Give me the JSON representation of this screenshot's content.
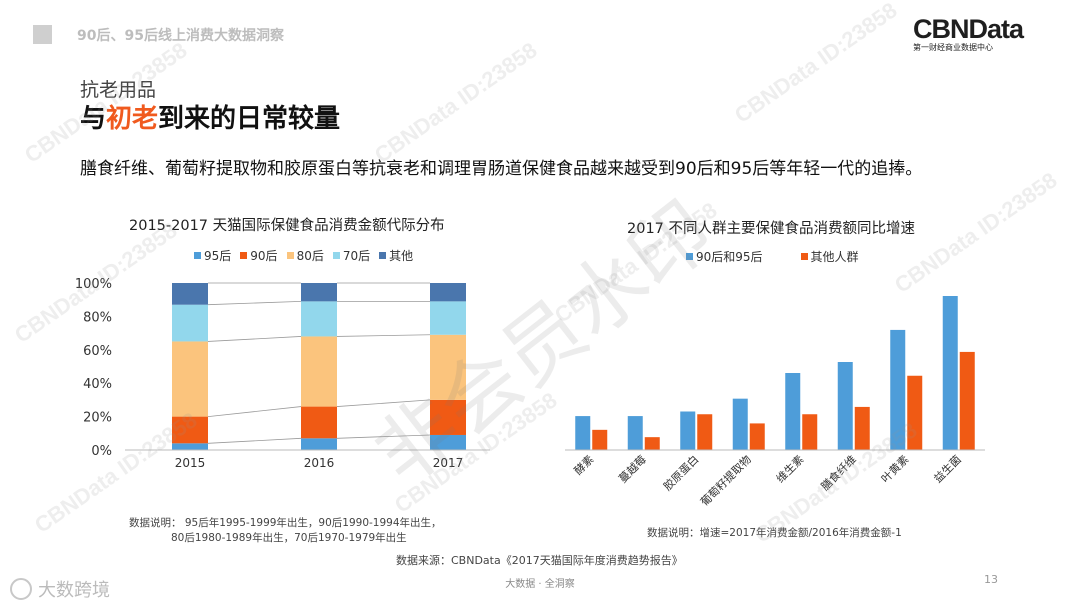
{
  "header": {
    "text": "90后、95后线上消费大数据洞察"
  },
  "logo": {
    "main": "CBNData",
    "sub": "第一财经商业数据中心"
  },
  "slide": {
    "category": "抗老用品",
    "title_prefix": "与",
    "title_highlight": "初老",
    "title_suffix": "到来的日常较量",
    "description": "膳食纤维、葡萄籽提取物和胶原蛋白等抗衰老和调理胃肠道保健食品越来越受到90后和95后等年轻一代的追捧。"
  },
  "watermark": {
    "small": "CBNData ID:23858",
    "big": "非会员水印"
  },
  "chart_data": [
    {
      "type": "bar",
      "stacked": true,
      "title": "2015-2017 天猫国际保健食品消费金额代际分布",
      "categories": [
        "2015",
        "2016",
        "2017"
      ],
      "series": [
        {
          "name": "95后",
          "color": "#4e9dd9",
          "values": [
            4,
            7,
            9
          ]
        },
        {
          "name": "90后",
          "color": "#f05a14",
          "values": [
            16,
            19,
            21
          ]
        },
        {
          "name": "80后",
          "color": "#fbc47d",
          "values": [
            45,
            42,
            39
          ]
        },
        {
          "name": "70后",
          "color": "#92d7ec",
          "values": [
            22,
            21,
            20
          ]
        },
        {
          "name": "其他",
          "color": "#4a76ad",
          "values": [
            13,
            11,
            11
          ]
        }
      ],
      "yticks": [
        "0%",
        "20%",
        "40%",
        "60%",
        "80%",
        "100%"
      ],
      "ylim": [
        0,
        100
      ],
      "note": [
        "数据说明： 95后年1995-1999年出生，90后1990-1994年出生，",
        "80后1980-1989年出生，70后1970-1979年出生"
      ]
    },
    {
      "type": "bar",
      "title": "2017 不同人群主要保健食品消费额同比增速",
      "categories": [
        "酵素",
        "蔓越莓",
        "胶原蛋白",
        "葡萄籽提取物",
        "维生素",
        "膳食纤维",
        "叶黄素",
        "益生菌"
      ],
      "series": [
        {
          "name": "90后和95后",
          "color": "#4e9dd9",
          "values": [
            0.37,
            0.37,
            0.42,
            0.56,
            0.84,
            0.96,
            1.31,
            1.68
          ]
        },
        {
          "name": "其他人群",
          "color": "#f05a14",
          "values": [
            0.22,
            0.14,
            0.39,
            0.29,
            0.39,
            0.47,
            0.81,
            1.07
          ]
        }
      ],
      "ylim": [
        0,
        1.8
      ],
      "note": "数据说明：增速=2017年消费金额/2016年消费金额-1"
    }
  ],
  "footer": {
    "source": "数据来源：CBNData《2017天猫国际年度消费趋势报告》",
    "center": "大数据 · 全洞察",
    "page": "13",
    "brand": "大数跨境"
  }
}
